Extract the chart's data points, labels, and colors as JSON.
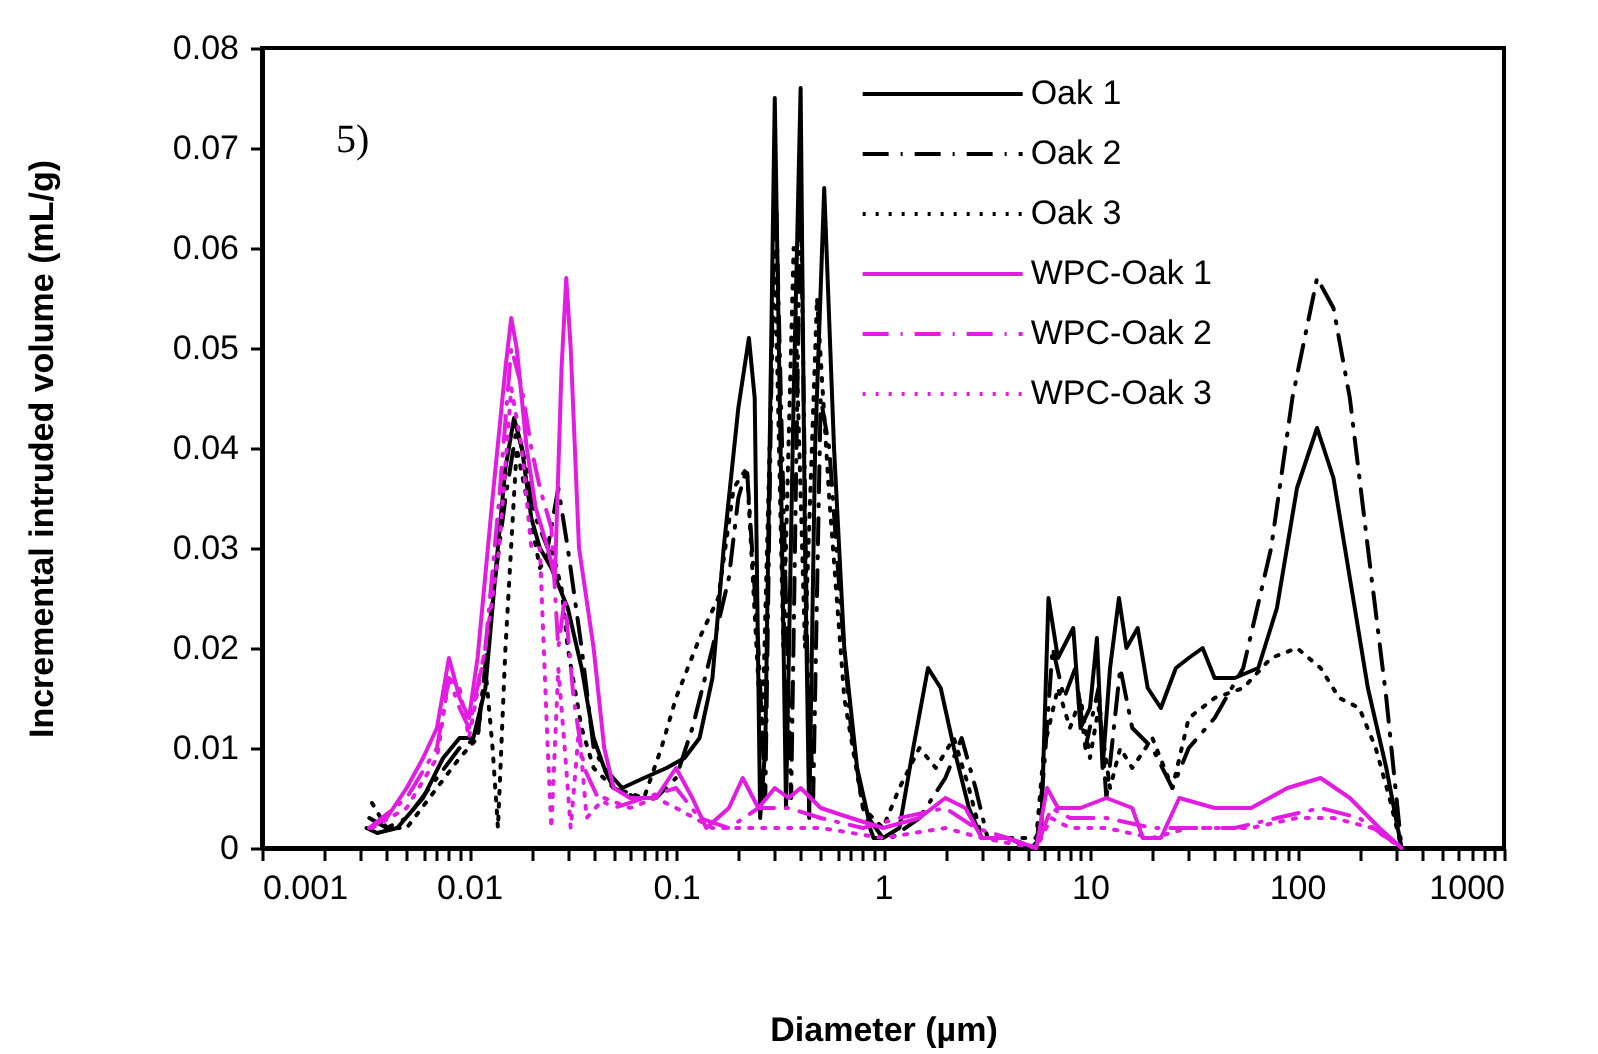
{
  "chart_data": {
    "type": "line",
    "xlabel": "Diameter (µm)",
    "ylabel": "Incremental intruded volume (mL/g)",
    "annotations": [
      "5)"
    ],
    "xlim": [
      0.001,
      1000
    ],
    "ylim": [
      0,
      0.08
    ],
    "xticks": [
      0.001,
      {
        "value": 0.002,
        "label": null
      },
      {
        "value": 0.003,
        "label": null
      },
      {
        "value": 0.004,
        "label": null
      },
      {
        "value": 0.005,
        "label": null
      },
      {
        "value": 0.006,
        "label": null
      },
      {
        "value": 0.007,
        "label": null
      },
      {
        "value": 0.008,
        "label": null
      },
      {
        "value": 0.009,
        "label": null
      },
      0.01,
      {
        "value": 0.02,
        "label": null
      },
      {
        "value": 0.03,
        "label": null
      },
      {
        "value": 0.04,
        "label": null
      },
      {
        "value": 0.05,
        "label": null
      },
      {
        "value": 0.06,
        "label": null
      },
      {
        "value": 0.07,
        "label": null
      },
      {
        "value": 0.08,
        "label": null
      },
      {
        "value": 0.09,
        "label": null
      },
      0.1,
      {
        "value": 0.2,
        "label": null
      },
      {
        "value": 0.3,
        "label": null
      },
      {
        "value": 0.4,
        "label": null
      },
      {
        "value": 0.5,
        "label": null
      },
      {
        "value": 0.6,
        "label": null
      },
      {
        "value": 0.7,
        "label": null
      },
      {
        "value": 0.8,
        "label": null
      },
      {
        "value": 0.9,
        "label": null
      },
      1,
      {
        "value": 2,
        "label": null
      },
      {
        "value": 3,
        "label": null
      },
      {
        "value": 4,
        "label": null
      },
      {
        "value": 5,
        "label": null
      },
      {
        "value": 6,
        "label": null
      },
      {
        "value": 7,
        "label": null
      },
      {
        "value": 8,
        "label": null
      },
      {
        "value": 9,
        "label": null
      },
      10,
      {
        "value": 20,
        "label": null
      },
      {
        "value": 30,
        "label": null
      },
      {
        "value": 40,
        "label": null
      },
      {
        "value": 50,
        "label": null
      },
      {
        "value": 60,
        "label": null
      },
      {
        "value": 70,
        "label": null
      },
      {
        "value": 80,
        "label": null
      },
      {
        "value": 90,
        "label": null
      },
      100,
      {
        "value": 200,
        "label": null
      },
      {
        "value": 300,
        "label": null
      },
      {
        "value": 400,
        "label": null
      },
      {
        "value": 500,
        "label": null
      },
      {
        "value": 600,
        "label": null
      },
      {
        "value": 700,
        "label": null
      },
      {
        "value": 800,
        "label": null
      },
      {
        "value": 900,
        "label": null
      },
      1000
    ],
    "yticks": [
      0,
      0.01,
      0.02,
      0.03,
      0.04,
      0.05,
      0.06,
      0.07,
      0.08
    ],
    "log": "x",
    "grid": false,
    "legend": "top right",
    "series": [
      {
        "name": "Oak 1",
        "color": "#000000",
        "line_style": "solid",
        "x": [
          0.0032,
          0.0036,
          0.0045,
          0.006,
          0.0075,
          0.009,
          0.0105,
          0.012,
          0.0135,
          0.015,
          0.0165,
          0.018,
          0.02,
          0.022,
          0.025,
          0.03,
          0.035,
          0.04,
          0.045,
          0.055,
          0.07,
          0.09,
          0.11,
          0.13,
          0.15,
          0.17,
          0.2,
          0.225,
          0.24,
          0.255,
          0.27,
          0.3,
          0.32,
          0.34,
          0.37,
          0.4,
          0.42,
          0.44,
          0.47,
          0.52,
          0.58,
          0.65,
          0.75,
          0.85,
          1,
          1.2,
          1.4,
          1.65,
          1.9,
          2.2,
          2.6,
          3,
          4,
          5.2,
          5.8,
          6.3,
          7,
          8.3,
          9,
          10,
          10.8,
          11.5,
          12.5,
          13.8,
          15,
          17,
          19,
          22,
          26,
          30,
          35,
          40,
          50,
          65,
          80,
          100,
          125,
          150,
          180,
          220,
          270,
          320
        ],
        "values": [
          0.002,
          0.0015,
          0.002,
          0.005,
          0.009,
          0.011,
          0.011,
          0.016,
          0.028,
          0.038,
          0.043,
          0.04,
          0.033,
          0.03,
          0.028,
          0.024,
          0.018,
          0.011,
          0.008,
          0.006,
          0.007,
          0.008,
          0.009,
          0.011,
          0.017,
          0.03,
          0.044,
          0.051,
          0.045,
          0.003,
          0.01,
          0.075,
          0.04,
          0.004,
          0.045,
          0.076,
          0.03,
          0.003,
          0.04,
          0.066,
          0.04,
          0.02,
          0.008,
          0.003,
          0.001,
          0.002,
          0.01,
          0.018,
          0.016,
          0.01,
          0.004,
          0.001,
          0.001,
          0,
          0.001,
          0.025,
          0.019,
          0.022,
          0.012,
          0.014,
          0.021,
          0.008,
          0.018,
          0.025,
          0.02,
          0.022,
          0.016,
          0.014,
          0.018,
          0.019,
          0.02,
          0.017,
          0.017,
          0.018,
          0.024,
          0.036,
          0.042,
          0.037,
          0.027,
          0.016,
          0.008,
          0
        ]
      },
      {
        "name": "Oak 2",
        "color": "#000000",
        "line_style": "dashdot",
        "x": [
          0.0033,
          0.004,
          0.005,
          0.007,
          0.009,
          0.011,
          0.013,
          0.015,
          0.017,
          0.019,
          0.021,
          0.024,
          0.027,
          0.03,
          0.035,
          0.04,
          0.05,
          0.065,
          0.08,
          0.1,
          0.12,
          0.15,
          0.18,
          0.2,
          0.22,
          0.25,
          0.27,
          0.3,
          0.33,
          0.36,
          0.4,
          0.43,
          0.46,
          0.5,
          0.55,
          0.62,
          0.7,
          0.8,
          0.9,
          1.1,
          1.5,
          2,
          2.4,
          2.8,
          3.2,
          4,
          5.5,
          6,
          6.6,
          7.5,
          8.5,
          9.5,
          11,
          12,
          14,
          16,
          20,
          25,
          30,
          40,
          55,
          75,
          95,
          125,
          150,
          180,
          220,
          270,
          320
        ],
        "values": [
          0.003,
          0.002,
          0.003,
          0.007,
          0.01,
          0.011,
          0.025,
          0.035,
          0.042,
          0.038,
          0.033,
          0.03,
          0.036,
          0.03,
          0.02,
          0.01,
          0.006,
          0.005,
          0.005,
          0.007,
          0.012,
          0.02,
          0.027,
          0.035,
          0.038,
          0.02,
          0.005,
          0.07,
          0.035,
          0.005,
          0.067,
          0.02,
          0.005,
          0.045,
          0.04,
          0.025,
          0.012,
          0.004,
          0.001,
          0.001,
          0.003,
          0.007,
          0.011,
          0.006,
          0.001,
          0.001,
          0,
          0.008,
          0.02,
          0.015,
          0.018,
          0.01,
          0.016,
          0.005,
          0.018,
          0.012,
          0.01,
          0.006,
          0.01,
          0.013,
          0.018,
          0.03,
          0.045,
          0.057,
          0.054,
          0.045,
          0.03,
          0.015,
          0
        ]
      },
      {
        "name": "Oak 3",
        "color": "#000000",
        "line_style": "dotted",
        "x": [
          0.0034,
          0.004,
          0.005,
          0.007,
          0.009,
          0.011,
          0.012,
          0.013,
          0.0138,
          0.015,
          0.017,
          0.019,
          0.022,
          0.025,
          0.028,
          0.03,
          0.035,
          0.04,
          0.05,
          0.07,
          0.085,
          0.1,
          0.13,
          0.16,
          0.19,
          0.22,
          0.26,
          0.3,
          0.33,
          0.37,
          0.42,
          0.48,
          0.55,
          0.65,
          0.8,
          1,
          1.2,
          1.5,
          1.8,
          2.2,
          2.6,
          3,
          4,
          5.5,
          6,
          7,
          8,
          9,
          10,
          11,
          12.5,
          14,
          16,
          20,
          25,
          30,
          40,
          55,
          75,
          100,
          130,
          160,
          200,
          240,
          280,
          320
        ],
        "values": [
          0.0045,
          0.002,
          0.002,
          0.006,
          0.009,
          0.011,
          0.018,
          0.01,
          0.002,
          0.02,
          0.04,
          0.035,
          0.028,
          0.03,
          0.026,
          0.02,
          0.012,
          0.008,
          0.006,
          0.005,
          0.01,
          0.015,
          0.021,
          0.025,
          0.036,
          0.038,
          0.01,
          0.06,
          0.02,
          0.06,
          0.02,
          0.055,
          0.035,
          0.015,
          0.004,
          0.002,
          0.006,
          0.01,
          0.008,
          0.011,
          0.006,
          0.001,
          0.001,
          0.001,
          0.01,
          0.016,
          0.012,
          0.015,
          0.009,
          0.014,
          0.006,
          0.01,
          0.008,
          0.011,
          0.006,
          0.013,
          0.015,
          0.016,
          0.019,
          0.02,
          0.018,
          0.015,
          0.014,
          0.01,
          0.005,
          0
        ]
      },
      {
        "name": "WPC-Oak 1",
        "color": "#e31be3",
        "line_style": "solid",
        "x": [
          0.0033,
          0.004,
          0.005,
          0.006,
          0.007,
          0.008,
          0.0085,
          0.009,
          0.01,
          0.011,
          0.013,
          0.015,
          0.016,
          0.017,
          0.019,
          0.021,
          0.024,
          0.026,
          0.028,
          0.0295,
          0.031,
          0.034,
          0.04,
          0.045,
          0.05,
          0.06,
          0.08,
          0.1,
          0.12,
          0.14,
          0.18,
          0.21,
          0.25,
          0.3,
          0.35,
          0.4,
          0.5,
          0.7,
          1,
          1.5,
          2,
          2.5,
          3,
          4,
          5.5,
          6.2,
          7,
          9,
          12,
          16,
          18,
          22,
          27,
          40,
          60,
          90,
          130,
          180,
          250,
          320
        ],
        "values": [
          0.002,
          0.003,
          0.006,
          0.009,
          0.012,
          0.019,
          0.017,
          0.015,
          0.013,
          0.019,
          0.035,
          0.048,
          0.053,
          0.05,
          0.04,
          0.034,
          0.03,
          0.027,
          0.048,
          0.057,
          0.05,
          0.03,
          0.02,
          0.01,
          0.006,
          0.005,
          0.005,
          0.008,
          0.005,
          0.002,
          0.004,
          0.007,
          0.004,
          0.006,
          0.005,
          0.006,
          0.004,
          0.003,
          0.002,
          0.003,
          0.005,
          0.004,
          0.001,
          0.001,
          0,
          0.006,
          0.004,
          0.004,
          0.005,
          0.004,
          0.001,
          0.001,
          0.005,
          0.004,
          0.004,
          0.006,
          0.007,
          0.005,
          0.002,
          0
        ]
      },
      {
        "name": "WPC-Oak 2",
        "color": "#e31be3",
        "line_style": "dashdot",
        "x": [
          0.0033,
          0.005,
          0.007,
          0.008,
          0.009,
          0.01,
          0.012,
          0.014,
          0.016,
          0.018,
          0.02,
          0.022,
          0.025,
          0.027,
          0.029,
          0.032,
          0.036,
          0.042,
          0.05,
          0.07,
          0.1,
          0.13,
          0.18,
          0.25,
          0.35,
          0.5,
          0.8,
          1.2,
          2,
          2.8,
          4,
          5.5,
          6.5,
          8,
          12,
          20,
          30,
          50,
          80,
          130,
          200,
          320
        ],
        "values": [
          0.002,
          0.005,
          0.01,
          0.017,
          0.014,
          0.012,
          0.02,
          0.035,
          0.05,
          0.046,
          0.04,
          0.036,
          0.032,
          0.02,
          0.025,
          0.015,
          0.008,
          0.005,
          0.004,
          0.005,
          0.006,
          0.003,
          0.002,
          0.004,
          0.004,
          0.003,
          0.002,
          0.003,
          0.004,
          0.002,
          0.001,
          0,
          0.004,
          0.003,
          0.003,
          0.002,
          0.002,
          0.002,
          0.003,
          0.004,
          0.003,
          0
        ]
      },
      {
        "name": "WPC-Oak 3",
        "color": "#e31be3",
        "line_style": "dotted",
        "x": [
          0.0034,
          0.005,
          0.007,
          0.008,
          0.009,
          0.01,
          0.012,
          0.014,
          0.016,
          0.018,
          0.02,
          0.022,
          0.024,
          0.025,
          0.027,
          0.029,
          0.031,
          0.034,
          0.037,
          0.045,
          0.06,
          0.08,
          0.1,
          0.15,
          0.2,
          0.3,
          0.5,
          1,
          2,
          3,
          5.5,
          6.5,
          8,
          12,
          20,
          30,
          60,
          100,
          150,
          230,
          320
        ],
        "values": [
          0.002,
          0.004,
          0.009,
          0.017,
          0.016,
          0.011,
          0.02,
          0.03,
          0.046,
          0.04,
          0.03,
          0.03,
          0.01,
          0.002,
          0.018,
          0.01,
          0.002,
          0.012,
          0.003,
          0.005,
          0.004,
          0.005,
          0.004,
          0.002,
          0.002,
          0.002,
          0.002,
          0.001,
          0.002,
          0.001,
          0,
          0.003,
          0.002,
          0.002,
          0.001,
          0.002,
          0.002,
          0.003,
          0.003,
          0.002,
          0
        ]
      }
    ]
  }
}
